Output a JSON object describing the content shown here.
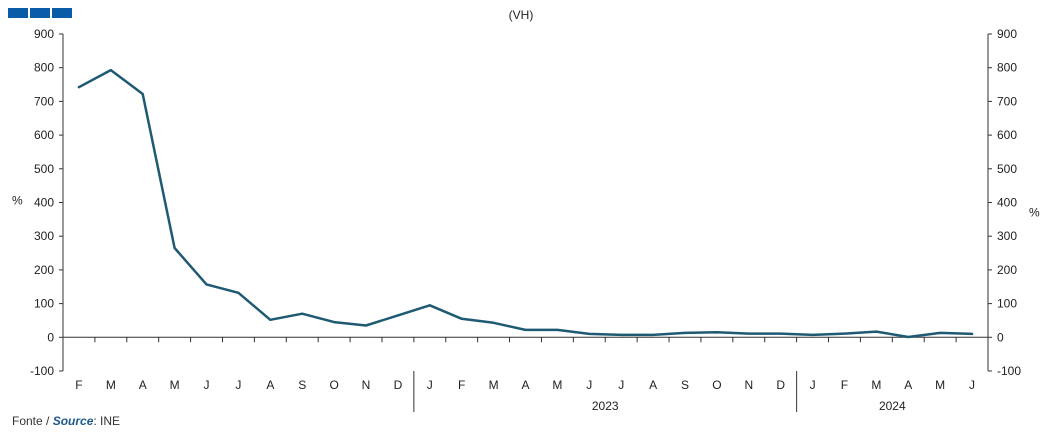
{
  "header": {
    "unit_note": "(VH)"
  },
  "colors": {
    "line": "#1f5a73",
    "logo": "#0b5ca8",
    "axis": "#333333"
  },
  "chart_data": {
    "type": "line",
    "y_left_label": "%",
    "y_right_label": "%",
    "ylim": [
      -100,
      900
    ],
    "yticks": [
      900,
      800,
      700,
      600,
      500,
      400,
      300,
      200,
      100,
      0,
      -100
    ],
    "grid": false,
    "categories": [
      "F",
      "M",
      "A",
      "M",
      "J",
      "J",
      "A",
      "S",
      "O",
      "N",
      "D",
      "J",
      "F",
      "M",
      "A",
      "M",
      "J",
      "J",
      "A",
      "S",
      "O",
      "N",
      "D",
      "J",
      "F",
      "M",
      "A",
      "M",
      "J"
    ],
    "year_labels": [
      {
        "label": "",
        "start": 0,
        "end": 10
      },
      {
        "label": "2023",
        "start": 11,
        "end": 22
      },
      {
        "label": "2024",
        "start": 23,
        "end": 28
      }
    ],
    "series": [
      {
        "values": [
          742,
          793,
          722,
          265,
          157,
          132,
          52,
          70,
          45,
          35,
          65,
          95,
          55,
          43,
          22,
          22,
          10,
          7,
          7,
          13,
          15,
          11,
          11,
          7,
          11,
          17,
          1,
          13,
          10
        ]
      }
    ]
  },
  "footer": {
    "source_prefix": "Fonte",
    "source_sep": " / ",
    "source_italic": "Source",
    "source_suffix": ": INE"
  }
}
